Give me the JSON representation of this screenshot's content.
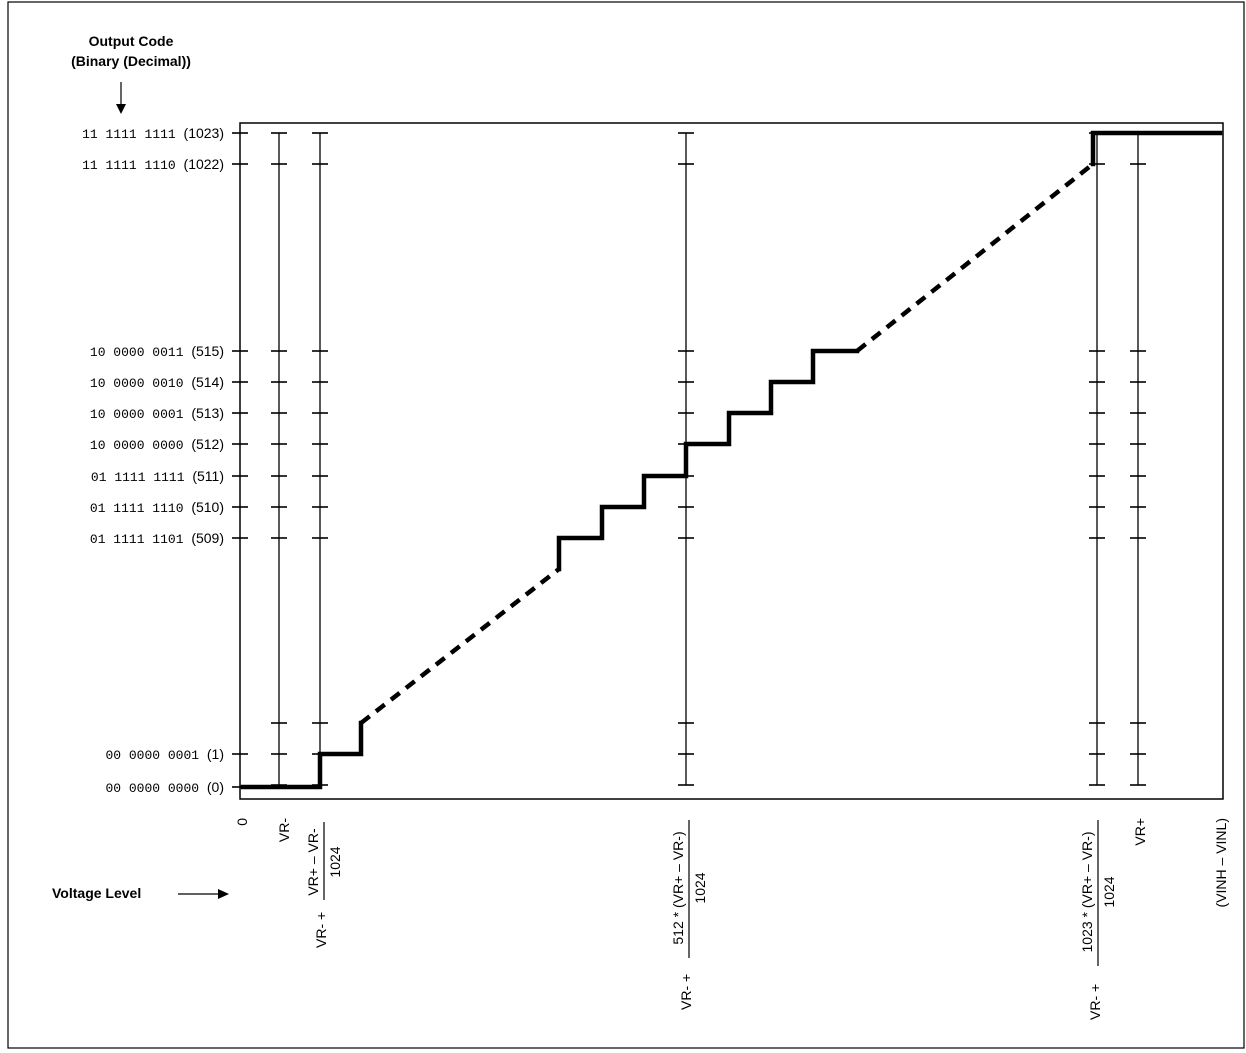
{
  "chart_data": {
    "type": "line",
    "title_line1": "Output Code",
    "title_line2": "(Binary (Decimal))",
    "xlabel": "Voltage Level",
    "ylabels": [
      {
        "code": 0,
        "binary": "00 0000 0000",
        "decimal": "(0)"
      },
      {
        "code": 1,
        "binary": "00 0000 0001",
        "decimal": "(1)"
      },
      {
        "code": 509,
        "binary": "01 1111 1101",
        "decimal": "(509)"
      },
      {
        "code": 510,
        "binary": "01 1111 1110",
        "decimal": "(510)"
      },
      {
        "code": 511,
        "binary": "01 1111 1111",
        "decimal": "(511)"
      },
      {
        "code": 512,
        "binary": "10 0000 0000",
        "decimal": "(512)"
      },
      {
        "code": 513,
        "binary": "10 0000 0001",
        "decimal": "(513)"
      },
      {
        "code": 514,
        "binary": "10 0000 0010",
        "decimal": "(514)"
      },
      {
        "code": 515,
        "binary": "10 0000 0011",
        "decimal": "(515)"
      },
      {
        "code": 1022,
        "binary": "11 1111 1110",
        "decimal": "(1022)"
      },
      {
        "code": 1023,
        "binary": "11 1111 1111",
        "decimal": "(1023)"
      }
    ],
    "xlabels": {
      "zero": "0",
      "vr_minus": "VR-",
      "one_lsb_prefix": "VR- +",
      "one_lsb_num": "VR+ – VR-",
      "one_lsb_den": "1024",
      "mid_prefix": "VR- +",
      "mid_num": "512 * (VR+ – VR-)",
      "mid_den": "1024",
      "top_prefix": "VR- +",
      "top_num": "1023 * (VR+ – VR-)",
      "top_den": "1024",
      "vr_plus": "VR+",
      "vin": "(VINH – VINL)"
    }
  }
}
